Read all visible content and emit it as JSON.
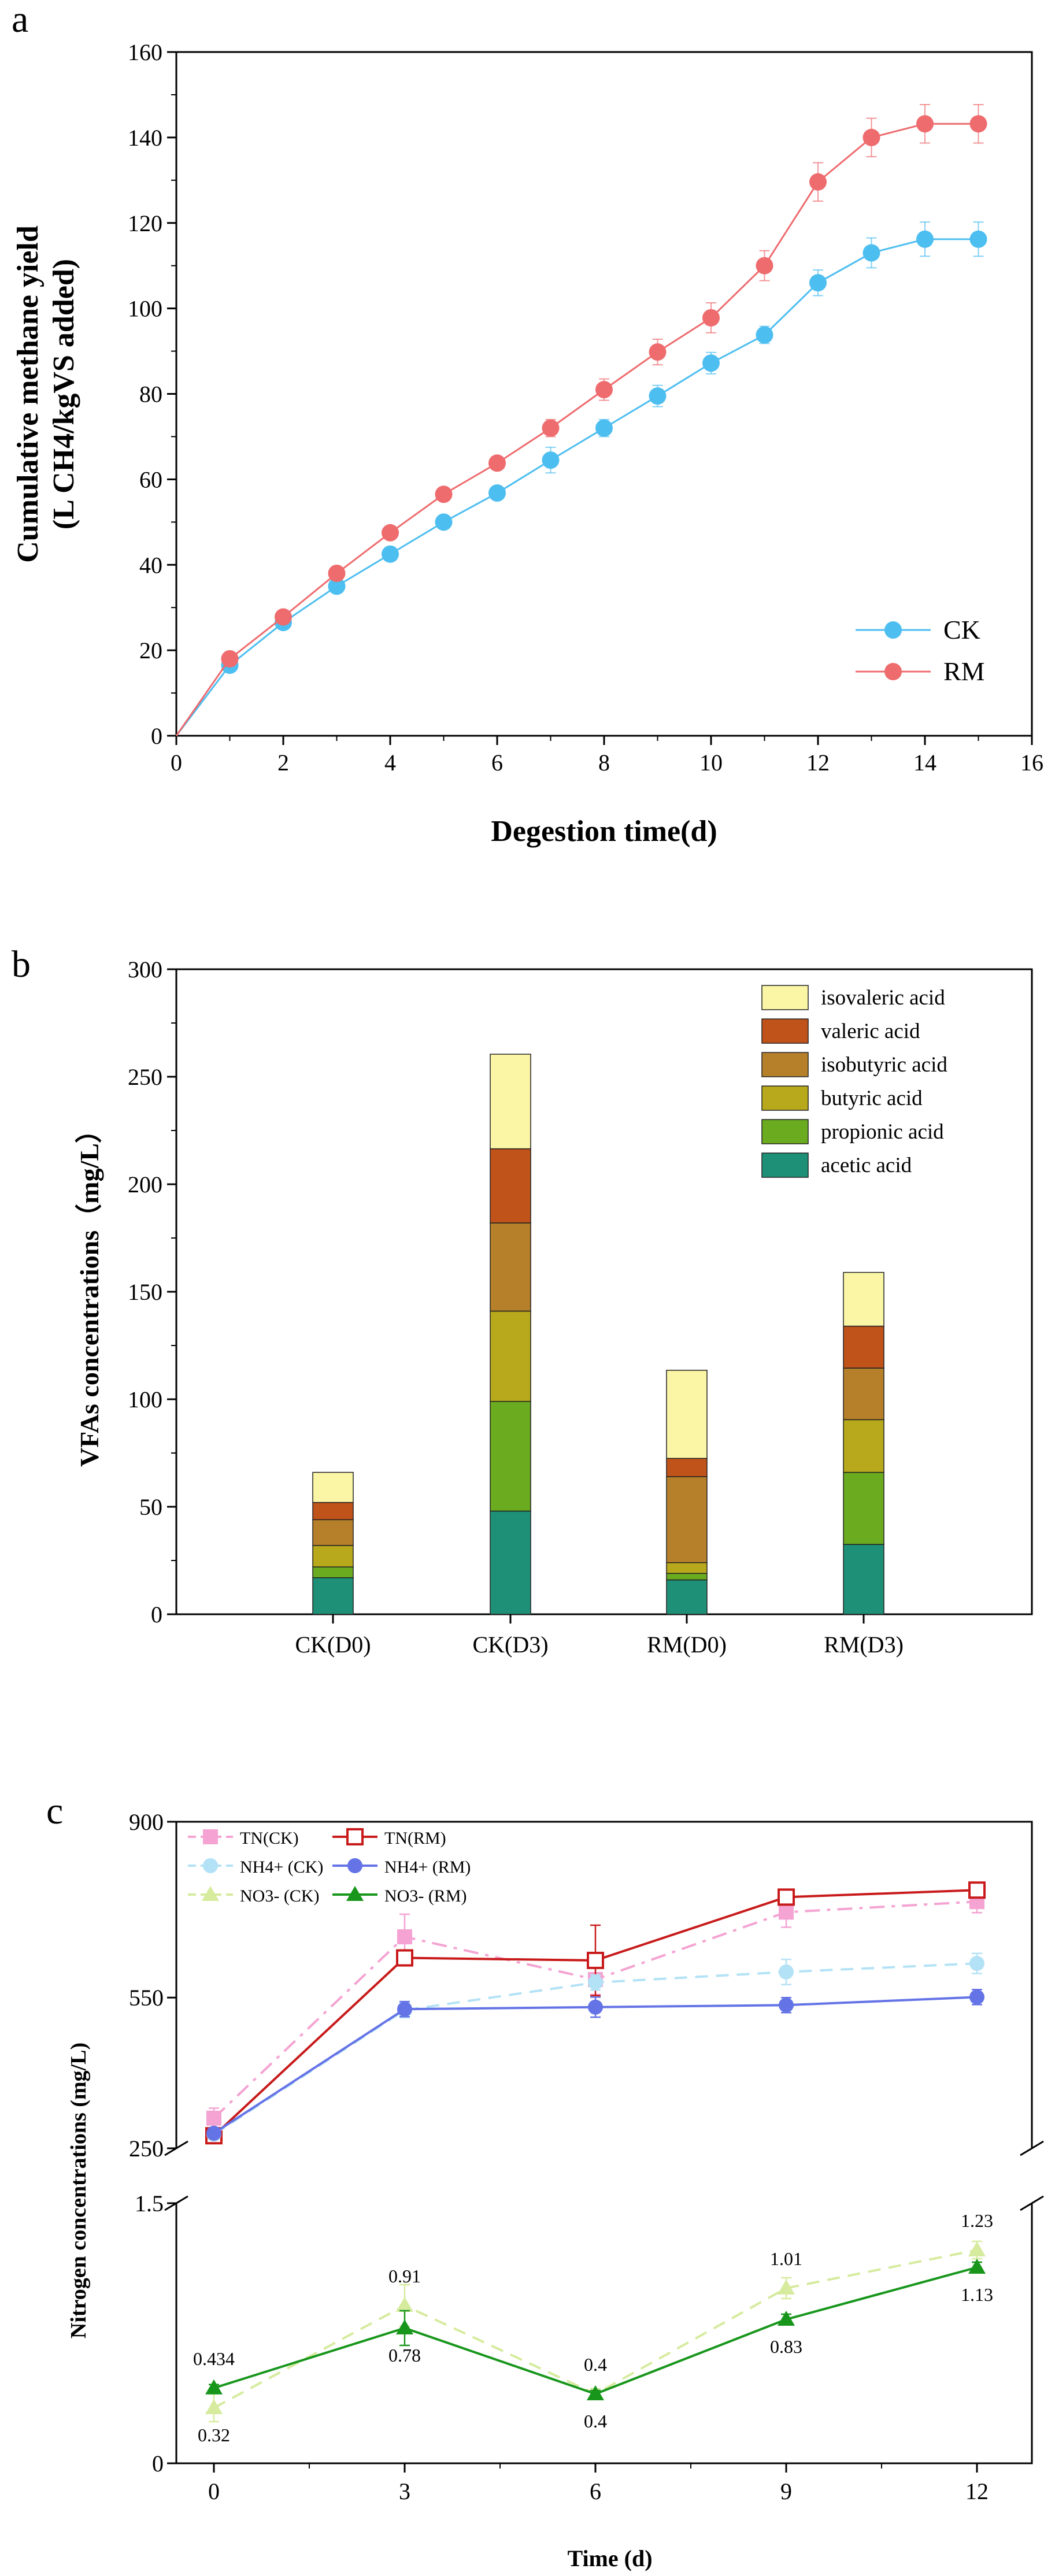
{
  "chart_data": [
    {
      "panel_letter": "a",
      "type": "line",
      "title": "",
      "xlabel": "Degestion time(d)",
      "ylabel_line1": "Cumulative methane yield",
      "ylabel_line2": "(L CH4/kgVS added)",
      "xlim": [
        0,
        16
      ],
      "ylim": [
        0,
        160
      ],
      "xticks": [
        "0",
        "2",
        "4",
        "6",
        "8",
        "10",
        "12",
        "14",
        "16"
      ],
      "yticks": [
        "0",
        "20",
        "40",
        "60",
        "80",
        "100",
        "120",
        "140",
        "160"
      ],
      "x": [
        0,
        1,
        2,
        3,
        4,
        5,
        6,
        7,
        8,
        9,
        10,
        11,
        12,
        13,
        14,
        15
      ],
      "series": [
        {
          "name": "CK",
          "color": "#4dbef0",
          "values": [
            0,
            16.5,
            26.5,
            35,
            42.5,
            50,
            56.8,
            64.5,
            72,
            79.5,
            87.2,
            93.8,
            106,
            113,
            116.2,
            116.2
          ],
          "errors": [
            0,
            1,
            1,
            1,
            1,
            1,
            1.5,
            3,
            2,
            2.5,
            2.5,
            2,
            3,
            3.5,
            4,
            4
          ]
        },
        {
          "name": "RM",
          "color": "#ee6b6e",
          "values": [
            0,
            18,
            27.8,
            38,
            47.5,
            56.5,
            63.8,
            72,
            81,
            89.8,
            97.8,
            110,
            129.6,
            140,
            143.2,
            143.2
          ],
          "errors": [
            0,
            1,
            1,
            1,
            1,
            1,
            1.5,
            2,
            2.5,
            3,
            3.5,
            3.5,
            4.5,
            4.5,
            4.5,
            4.5
          ]
        }
      ],
      "legend": "bottom-right"
    },
    {
      "panel_letter": "b",
      "type": "bar",
      "stacked": true,
      "xlabel": "",
      "ylabel": "VFAs concentrations（mg/L）",
      "ylim": [
        0,
        300
      ],
      "yticks": [
        "0",
        "50",
        "100",
        "150",
        "200",
        "250",
        "300"
      ],
      "categories": [
        "CK(D0)",
        "CK(D3)",
        "RM(D0)",
        "RM(D3)"
      ],
      "series": [
        {
          "name": "acetic acid",
          "color": "#1e9077",
          "values": [
            17,
            48,
            16,
            32.5
          ]
        },
        {
          "name": "propionic acid",
          "color": "#6aab1f",
          "values": [
            5,
            51,
            3,
            33.5
          ]
        },
        {
          "name": "butyric acid",
          "color": "#b7a81c",
          "values": [
            10,
            42,
            5,
            24.5
          ]
        },
        {
          "name": "isobutyric acid",
          "color": "#b6802b",
          "values": [
            12,
            41,
            40,
            24
          ]
        },
        {
          "name": "valeric acid",
          "color": "#c0531a",
          "values": [
            8,
            34.5,
            8.5,
            19.5
          ]
        },
        {
          "name": "isovaleric acid",
          "color": "#fbf5a6",
          "values": [
            14,
            44,
            41,
            25
          ]
        }
      ],
      "legend": "top-right"
    },
    {
      "panel_letter": "c",
      "type": "line",
      "broken_axis": true,
      "xlabel": "Time (d)",
      "ylabel": "Nitrogen concentrations (mg/L)",
      "x": [
        0,
        3,
        6,
        9,
        12
      ],
      "xticks": [
        "0",
        "3",
        "6",
        "9",
        "12"
      ],
      "upper_ylim": [
        250,
        900
      ],
      "upper_yticks": [
        "250",
        "550",
        "900"
      ],
      "lower_ylim": [
        0,
        1.5
      ],
      "lower_yticks": [
        "0",
        "1.5"
      ],
      "series": [
        {
          "name": "TN(CK)",
          "color": "#f4a3d2",
          "dash": "dash-dot",
          "marker": "square",
          "axis": "upper",
          "values": [
            310,
            671,
            586,
            720,
            741
          ],
          "errors": [
            20,
            45,
            30,
            30,
            22
          ]
        },
        {
          "name": "TN(RM)",
          "color": "#c81a1a",
          "dash": "solid",
          "marker": "square-open",
          "axis": "upper",
          "values": [
            275,
            629,
            624,
            750,
            764
          ],
          "errors": [
            8,
            15,
            70,
            15,
            15
          ]
        },
        {
          "name": "NH4+ (CK)",
          "color": "#b3e2f6",
          "dash": "dash",
          "marker": "circle",
          "axis": "upper",
          "values": [
            278,
            525,
            580,
            601,
            618
          ],
          "errors": [
            5,
            15,
            15,
            25,
            20
          ]
        },
        {
          "name": "NH4+ (RM)",
          "color": "#6473e6",
          "dash": "solid",
          "marker": "circle",
          "axis": "upper",
          "values": [
            280,
            527,
            531,
            535,
            551
          ],
          "errors": [
            5,
            15,
            20,
            15,
            15
          ]
        },
        {
          "name": "NO3- (CK)",
          "color": "#d6eb9e",
          "dash": "dash",
          "marker": "triangle",
          "axis": "lower",
          "values": [
            0.32,
            0.91,
            0.4,
            1.01,
            1.23
          ],
          "errors": [
            0.08,
            0.12,
            0.03,
            0.06,
            0.05
          ]
        },
        {
          "name": "NO3- (RM)",
          "color": "#18961c",
          "dash": "solid",
          "marker": "triangle",
          "axis": "lower",
          "values": [
            0.434,
            0.78,
            0.4,
            0.83,
            1.13
          ],
          "errors": [
            0.02,
            0.1,
            0.02,
            0.03,
            0.03
          ]
        }
      ],
      "data_labels": [
        {
          "text": "0.434",
          "x": 0,
          "y": 0.434,
          "pos": "above"
        },
        {
          "text": "0.32",
          "x": 0,
          "y": 0.32,
          "pos": "below"
        },
        {
          "text": "0.91",
          "x": 3,
          "y": 0.91,
          "pos": "above"
        },
        {
          "text": "0.78",
          "x": 3,
          "y": 0.78,
          "pos": "below"
        },
        {
          "text": "0.4",
          "x": 6,
          "y": 0.4,
          "pos": "above"
        },
        {
          "text": "0.4",
          "x": 6,
          "y": 0.4,
          "pos": "below"
        },
        {
          "text": "1.01",
          "x": 9,
          "y": 1.01,
          "pos": "above"
        },
        {
          "text": "0.83",
          "x": 9,
          "y": 0.83,
          "pos": "below"
        },
        {
          "text": "1.23",
          "x": 12,
          "y": 1.23,
          "pos": "above"
        },
        {
          "text": "1.13",
          "x": 12,
          "y": 1.13,
          "pos": "below"
        }
      ],
      "legend": "top-left"
    }
  ]
}
